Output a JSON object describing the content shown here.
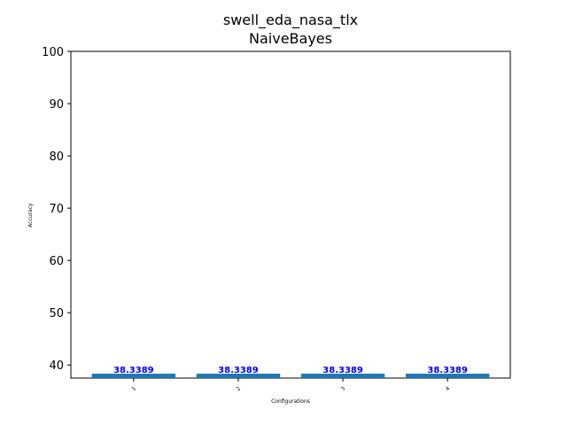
{
  "chart_data": {
    "type": "bar",
    "title": "swell_eda_nasa_tlx",
    "subtitle": "NaiveBayes",
    "xlabel": "Configurations",
    "ylabel": "Accuracy",
    "categories": [
      "1",
      "2",
      "3",
      "4"
    ],
    "values": [
      38.3389,
      38.3389,
      38.3389,
      38.3389
    ],
    "data_labels": [
      "38.3389",
      "38.3389",
      "38.3389",
      "38.3389"
    ],
    "ylim": [
      37.5,
      100
    ],
    "yticks": [
      40,
      50,
      60,
      70,
      80,
      90,
      100
    ],
    "ytick_labels": [
      "40",
      "50",
      "60",
      "70",
      "80",
      "90",
      "100"
    ],
    "grid": false,
    "bar_color": "#1f77b4",
    "label_color": "#0000ff"
  }
}
